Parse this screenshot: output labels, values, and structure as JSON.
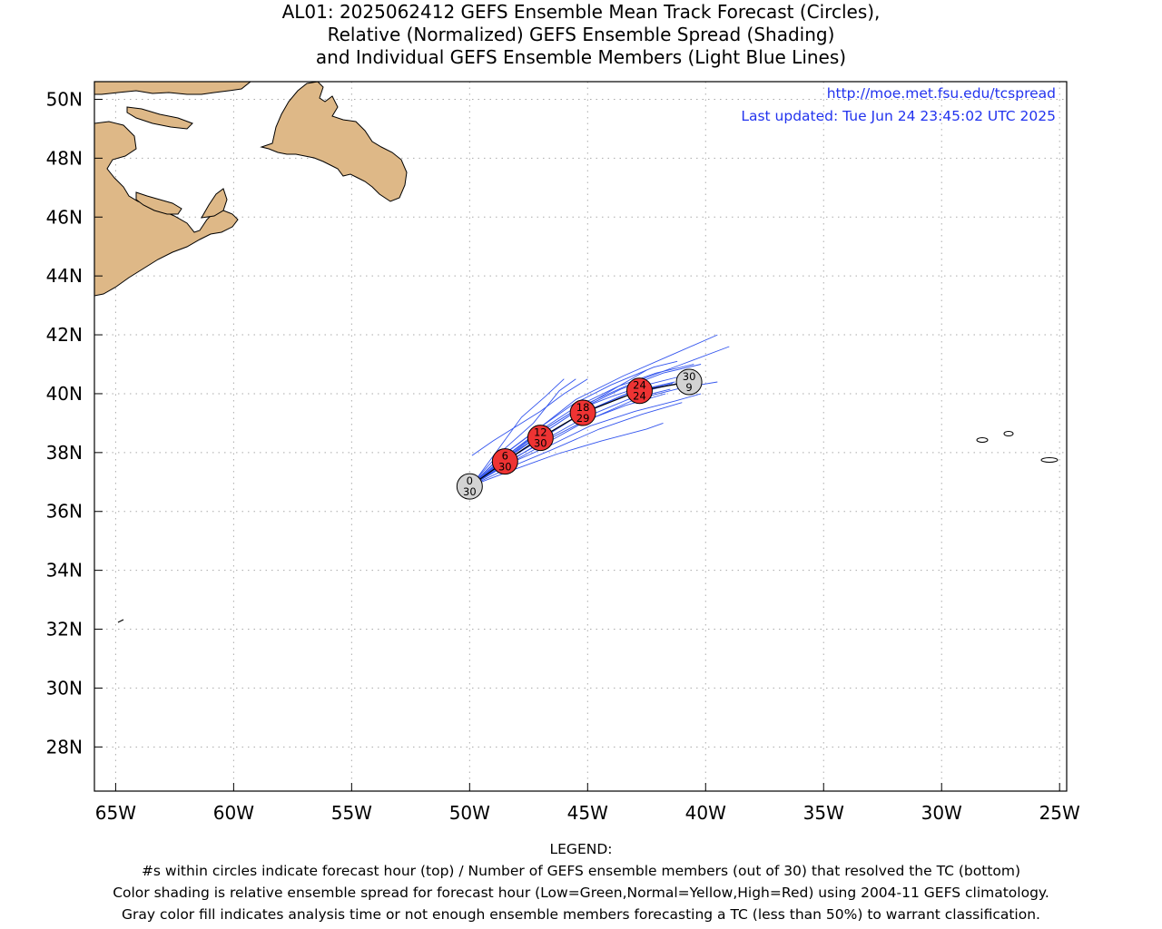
{
  "title": {
    "line1": "AL01: 2025062412 GEFS Ensemble Mean Track Forecast (Circles),",
    "line2": "Relative (Normalized) GEFS Ensemble Spread (Shading)",
    "line3": "and Individual GEFS Ensemble Members (Light Blue Lines)"
  },
  "info": {
    "url": "http://moe.met.fsu.edu/tcspread",
    "updated": "Last updated: Tue Jun 24 23:45:02 UTC 2025"
  },
  "map": {
    "lon_range": [
      -65.9,
      -24.7
    ],
    "lat_range": [
      26.5,
      50.6
    ],
    "lon_ticks": [
      {
        "lon": -65,
        "label": "65W"
      },
      {
        "lon": -60,
        "label": "60W"
      },
      {
        "lon": -55,
        "label": "55W"
      },
      {
        "lon": -50,
        "label": "50W"
      },
      {
        "lon": -45,
        "label": "45W"
      },
      {
        "lon": -40,
        "label": "40W"
      },
      {
        "lon": -35,
        "label": "35W"
      },
      {
        "lon": -30,
        "label": "30W"
      },
      {
        "lon": -25,
        "label": "25W"
      }
    ],
    "lat_ticks": [
      {
        "lat": 50,
        "label": "50N"
      },
      {
        "lat": 48,
        "label": "48N"
      },
      {
        "lat": 46,
        "label": "46N"
      },
      {
        "lat": 44,
        "label": "44N"
      },
      {
        "lat": 42,
        "label": "42N"
      },
      {
        "lat": 40,
        "label": "40N"
      },
      {
        "lat": 38,
        "label": "38N"
      },
      {
        "lat": 36,
        "label": "36N"
      },
      {
        "lat": 34,
        "label": "34N"
      },
      {
        "lat": 32,
        "label": "32N"
      },
      {
        "lat": 30,
        "label": "30N"
      },
      {
        "lat": 28,
        "label": "28N"
      }
    ],
    "colors": {
      "land": "#deb887",
      "coast": "#000000",
      "member_line": "#3355ee",
      "mean_track": "#000000",
      "circle_spread_high": "#ee3333",
      "circle_gray": "#d3d3d3",
      "grid": "#aaaaaa",
      "url_text": "#2233ee"
    },
    "mean_track": [
      {
        "hour": "0",
        "members": "30",
        "lon": -50.0,
        "lat": 36.85,
        "fill": "gray"
      },
      {
        "hour": "6",
        "members": "30",
        "lon": -48.5,
        "lat": 37.7,
        "fill": "red"
      },
      {
        "hour": "12",
        "members": "30",
        "lon": -47.0,
        "lat": 38.5,
        "fill": "red"
      },
      {
        "hour": "18",
        "members": "29",
        "lon": -45.2,
        "lat": 39.35,
        "fill": "red"
      },
      {
        "hour": "24",
        "members": "24",
        "lon": -42.8,
        "lat": 40.1,
        "fill": "red"
      },
      {
        "hour": "30",
        "members": "9",
        "lon": -40.7,
        "lat": 40.4,
        "fill": "gray"
      }
    ],
    "member_tracks": [
      [
        [
          -50.0,
          36.85
        ],
        [
          -48.6,
          37.9
        ],
        [
          -47.1,
          38.8
        ],
        [
          -45.5,
          39.8
        ],
        [
          -43.5,
          40.6
        ],
        [
          -41.5,
          41.3
        ],
        [
          -39.5,
          42.0
        ]
      ],
      [
        [
          -50.0,
          36.85
        ],
        [
          -48.5,
          37.8
        ],
        [
          -47.0,
          38.7
        ],
        [
          -45.2,
          39.6
        ],
        [
          -43.0,
          40.4
        ],
        [
          -41.0,
          41.0
        ],
        [
          -39.0,
          41.6
        ]
      ],
      [
        [
          -50.0,
          36.85
        ],
        [
          -48.7,
          38.0
        ],
        [
          -47.3,
          39.0
        ],
        [
          -46.2,
          40.1
        ],
        [
          -45.5,
          40.5
        ]
      ],
      [
        [
          -49.9,
          36.9
        ],
        [
          -48.8,
          38.1
        ],
        [
          -47.8,
          39.2
        ],
        [
          -46.8,
          39.9
        ],
        [
          -46.0,
          40.5
        ]
      ],
      [
        [
          -49.9,
          37.9
        ],
        [
          -49.0,
          38.4
        ],
        [
          -48.0,
          38.9
        ],
        [
          -47.0,
          39.4
        ],
        [
          -46.0,
          40.0
        ],
        [
          -45.0,
          40.5
        ]
      ],
      [
        [
          -50.0,
          36.85
        ],
        [
          -48.5,
          37.7
        ],
        [
          -47.0,
          38.5
        ],
        [
          -45.2,
          39.35
        ],
        [
          -43.5,
          39.9
        ],
        [
          -42.0,
          40.2
        ],
        [
          -40.4,
          40.5
        ]
      ],
      [
        [
          -50.0,
          36.85
        ],
        [
          -48.4,
          37.6
        ],
        [
          -46.8,
          38.3
        ],
        [
          -45.0,
          39.1
        ],
        [
          -43.0,
          39.8
        ],
        [
          -41.0,
          40.2
        ],
        [
          -39.5,
          40.4
        ]
      ],
      [
        [
          -50.0,
          36.85
        ],
        [
          -48.3,
          37.5
        ],
        [
          -46.5,
          38.1
        ],
        [
          -44.5,
          38.8
        ],
        [
          -42.7,
          39.3
        ],
        [
          -41.0,
          39.7
        ]
      ],
      [
        [
          -50.0,
          36.85
        ],
        [
          -48.2,
          37.4
        ],
        [
          -46.3,
          37.95
        ],
        [
          -44.4,
          38.4
        ],
        [
          -42.5,
          38.8
        ],
        [
          -41.8,
          39.0
        ]
      ],
      [
        [
          -50.0,
          36.85
        ],
        [
          -48.6,
          37.8
        ],
        [
          -47.2,
          38.6
        ],
        [
          -45.6,
          39.4
        ],
        [
          -44.0,
          39.9
        ],
        [
          -42.5,
          40.3
        ],
        [
          -41.0,
          40.6
        ]
      ],
      [
        [
          -50.0,
          36.85
        ],
        [
          -48.6,
          37.75
        ],
        [
          -47.1,
          38.55
        ],
        [
          -45.4,
          39.45
        ],
        [
          -43.6,
          40.15
        ],
        [
          -41.8,
          40.7
        ],
        [
          -40.2,
          41.0
        ]
      ],
      [
        [
          -50.0,
          36.85
        ],
        [
          -48.4,
          37.65
        ],
        [
          -46.9,
          38.4
        ],
        [
          -45.1,
          39.2
        ],
        [
          -43.3,
          39.8
        ],
        [
          -41.5,
          40.15
        ]
      ],
      [
        [
          -50.0,
          36.85
        ],
        [
          -48.5,
          37.75
        ],
        [
          -47.0,
          38.6
        ],
        [
          -45.3,
          39.5
        ],
        [
          -43.8,
          40.2
        ],
        [
          -42.5,
          40.8
        ]
      ],
      [
        [
          -50.0,
          36.85
        ],
        [
          -48.7,
          37.85
        ],
        [
          -47.2,
          38.75
        ],
        [
          -45.6,
          39.65
        ],
        [
          -44.0,
          40.3
        ],
        [
          -42.2,
          40.9
        ],
        [
          -41.2,
          41.1
        ]
      ],
      [
        [
          -50.0,
          36.85
        ],
        [
          -48.4,
          37.6
        ],
        [
          -46.7,
          38.2
        ],
        [
          -44.9,
          38.9
        ],
        [
          -43.0,
          39.4
        ],
        [
          -41.3,
          39.75
        ],
        [
          -40.2,
          40.0
        ]
      ],
      [
        [
          -50.0,
          36.85
        ],
        [
          -48.5,
          37.65
        ],
        [
          -46.9,
          38.35
        ],
        [
          -45.2,
          39.05
        ],
        [
          -43.4,
          39.6
        ],
        [
          -41.7,
          40.0
        ]
      ],
      [
        [
          -50.0,
          36.85
        ],
        [
          -48.6,
          37.8
        ],
        [
          -47.2,
          38.65
        ],
        [
          -45.5,
          39.55
        ],
        [
          -43.7,
          40.25
        ],
        [
          -42.1,
          40.7
        ],
        [
          -40.5,
          41.0
        ]
      ],
      [
        [
          -50.0,
          36.85
        ],
        [
          -48.5,
          37.7
        ],
        [
          -47.0,
          38.45
        ],
        [
          -45.3,
          39.3
        ],
        [
          -43.5,
          39.95
        ],
        [
          -41.8,
          40.3
        ]
      ],
      [
        [
          -50.0,
          36.85
        ],
        [
          -48.45,
          37.72
        ],
        [
          -46.95,
          38.52
        ],
        [
          -45.15,
          39.38
        ],
        [
          -43.2,
          40.05
        ],
        [
          -41.3,
          40.4
        ]
      ],
      [
        [
          -50.0,
          36.85
        ],
        [
          -48.55,
          37.68
        ],
        [
          -47.05,
          38.48
        ],
        [
          -45.25,
          39.32
        ],
        [
          -43.3,
          39.95
        ],
        [
          -41.4,
          40.35
        ]
      ]
    ]
  },
  "legend": {
    "heading": "LEGEND:",
    "line1": "#s within circles indicate forecast hour (top) / Number of GEFS ensemble members (out of 30) that resolved the TC (bottom)",
    "line2": "Color shading is relative ensemble spread for forecast hour (Low=Green,Normal=Yellow,High=Red) using 2004-11 GEFS climatology.",
    "line3": "Gray color fill indicates analysis time or not enough ensemble members forecasting a TC (less than 50%) to warrant classification."
  }
}
